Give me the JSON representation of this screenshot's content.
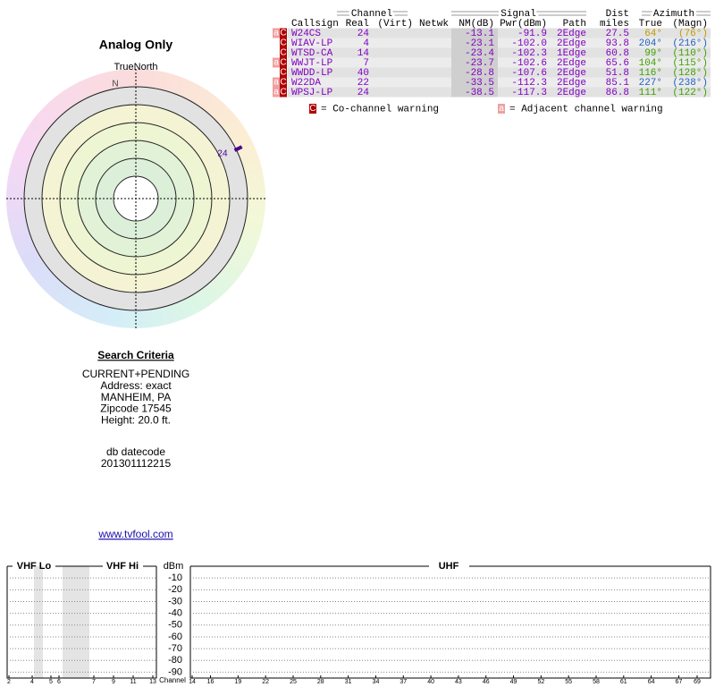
{
  "header": {
    "title": "Analog Only",
    "true_north": "TrueNorth",
    "north": "N"
  },
  "polar": {
    "stations": [
      {
        "label": "24",
        "azimuth": 64
      }
    ]
  },
  "table": {
    "groups": {
      "channel": "Channel",
      "signal": "Signal",
      "azimuth": "Azimuth"
    },
    "columns": {
      "callsign": "Callsign",
      "real": "Real",
      "virt": "(Virt)",
      "netwk": "Netwk",
      "nm": "NM(dB)",
      "pwr": "Pwr(dBm)",
      "path": "Path",
      "dist": "Dist",
      "dist_unit": "miles",
      "true": "True",
      "magn": "(Magn)"
    },
    "rows": [
      {
        "warnings": [
          "a",
          "C"
        ],
        "callsign": "W24CS",
        "real": "24",
        "nm": "-13.1",
        "pwr": "-91.9",
        "path": "2Edge",
        "dist": "27.5",
        "true": "64°",
        "magn": "(76°)",
        "azimuth_color": "#c09a00"
      },
      {
        "warnings": [
          "C"
        ],
        "callsign": "WIAV-LP",
        "real": "4",
        "nm": "-23.1",
        "pwr": "-102.0",
        "path": "2Edge",
        "dist": "93.8",
        "true": "204°",
        "magn": "(216°)",
        "azimuth_color": "#2060c0"
      },
      {
        "warnings": [
          "C"
        ],
        "callsign": "WTSD-CA",
        "real": "14",
        "nm": "-23.4",
        "pwr": "-102.3",
        "path": "1Edge",
        "dist": "60.8",
        "true": "99°",
        "magn": "(110°)",
        "azimuth_color": "#40a000"
      },
      {
        "warnings": [
          "a",
          "C"
        ],
        "callsign": "WWJT-LP",
        "real": "7",
        "nm": "-23.7",
        "pwr": "-102.6",
        "path": "2Edge",
        "dist": "65.6",
        "true": "104°",
        "magn": "(115°)",
        "azimuth_color": "#40a000"
      },
      {
        "warnings": [
          "C"
        ],
        "callsign": "WWDD-LP",
        "real": "40",
        "nm": "-28.8",
        "pwr": "-107.6",
        "path": "2Edge",
        "dist": "51.8",
        "true": "116°",
        "magn": "(128°)",
        "azimuth_color": "#40a000"
      },
      {
        "warnings": [
          "a",
          "C"
        ],
        "callsign": "W22DA",
        "real": "22",
        "nm": "-33.5",
        "pwr": "-112.3",
        "path": "2Edge",
        "dist": "85.1",
        "true": "227°",
        "magn": "(238°)",
        "azimuth_color": "#2060c0"
      },
      {
        "warnings": [
          "a",
          "C"
        ],
        "callsign": "WPSJ-LP",
        "real": "24",
        "nm": "-38.5",
        "pwr": "-117.3",
        "path": "2Edge",
        "dist": "86.8",
        "true": "111°",
        "magn": "(122°)",
        "azimuth_color": "#40a000"
      }
    ]
  },
  "legend": [
    {
      "badge": "C",
      "text": "= Co-channel warning"
    },
    {
      "badge": "a",
      "text": "= Adjacent channel warning"
    }
  ],
  "search": {
    "title": "Search Criteria",
    "lines": [
      "CURRENT+PENDING",
      "Address: exact",
      "MANHEIM, PA",
      "Zipcode 17545",
      "Height: 20.0 ft."
    ],
    "datecode_label": "db datecode",
    "datecode": "201301112215",
    "link": "www.tvfool.com"
  },
  "spectrum": {
    "sections": {
      "vhf_lo": "VHF Lo",
      "vhf_hi": "VHF Hi",
      "uhf": "UHF"
    },
    "ylabel": "dBm",
    "xlabel": "Channel",
    "ylim": [
      0,
      -95
    ],
    "yticks": [
      -10,
      -20,
      -30,
      -40,
      -50,
      -60,
      -70,
      -80,
      -90
    ],
    "vhf_ticks": [
      2,
      4,
      5,
      6,
      7,
      9,
      11,
      13
    ],
    "uhf_ticks": [
      14,
      16,
      19,
      22,
      25,
      28,
      31,
      34,
      37,
      40,
      43,
      46,
      49,
      52,
      55,
      58,
      61,
      64,
      67,
      69
    ]
  }
}
